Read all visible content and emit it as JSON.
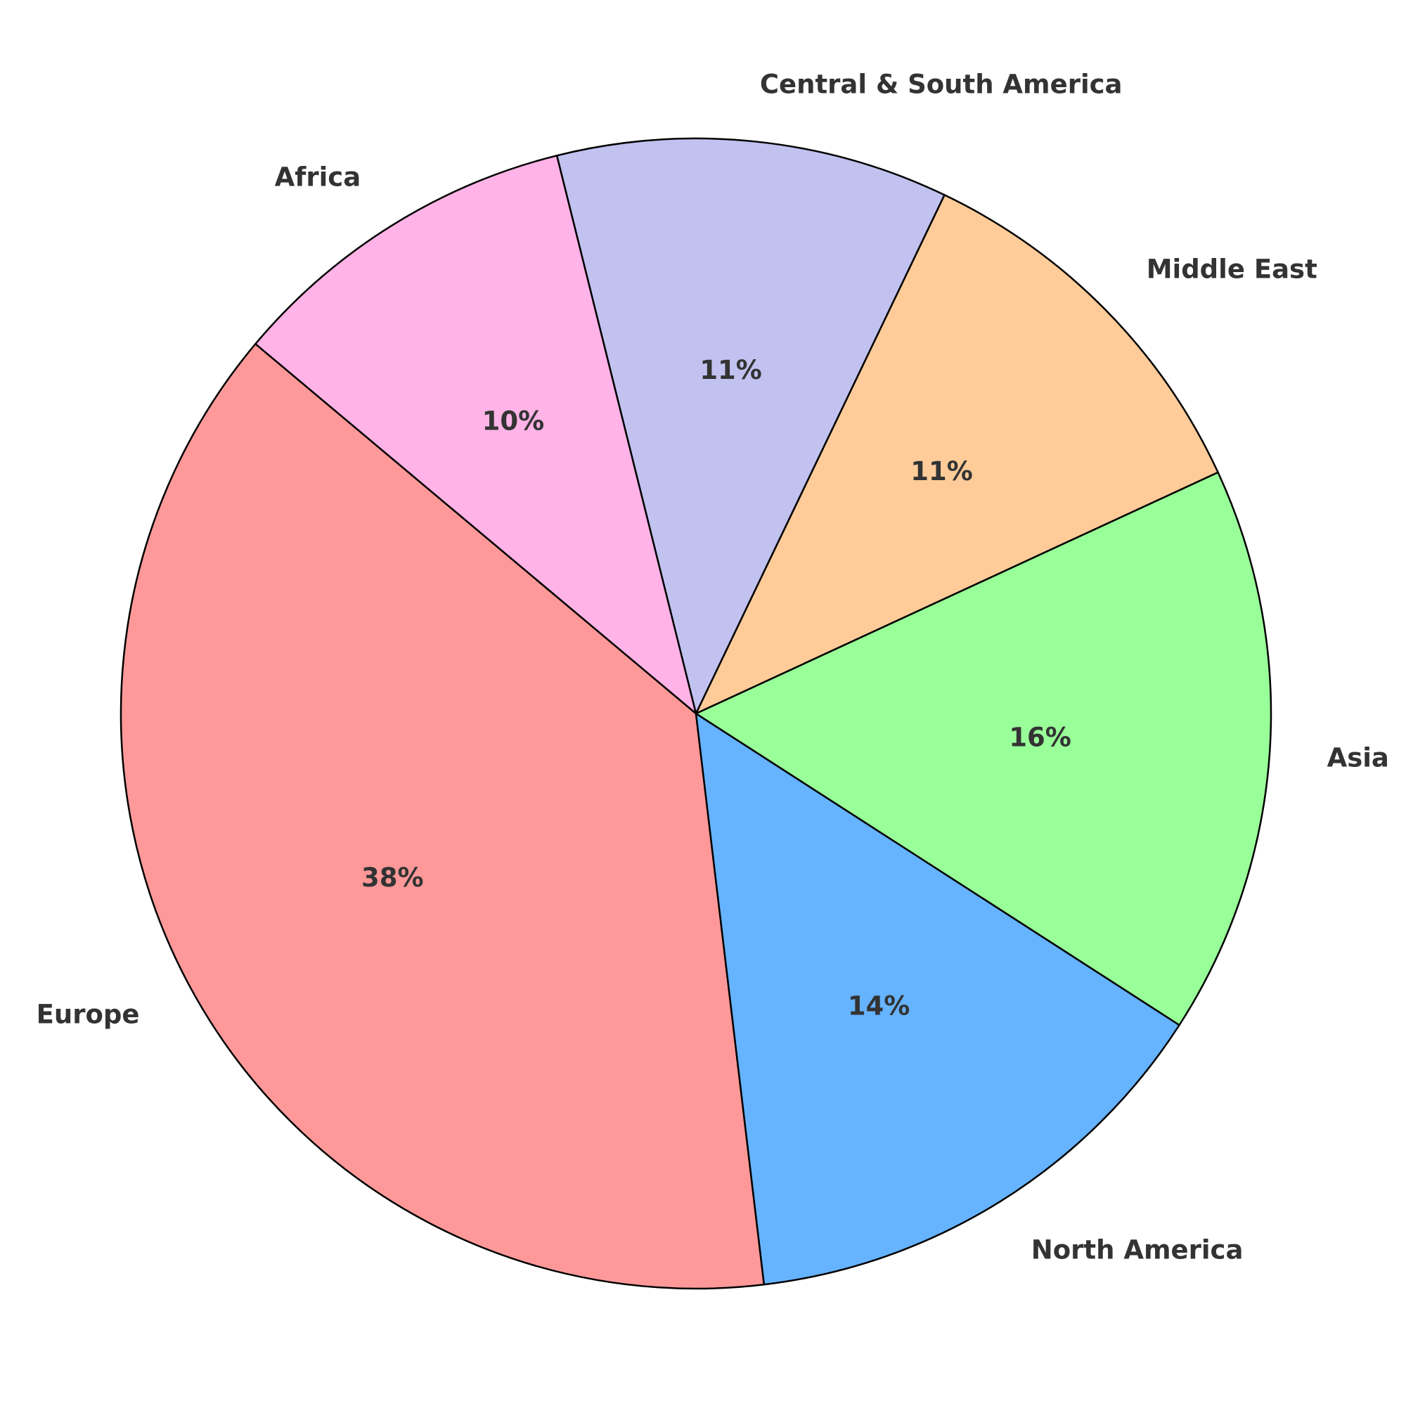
{
  "chart_data": {
    "type": "pie",
    "title": "",
    "categories": [
      "Europe",
      "North America",
      "Asia",
      "Middle East",
      "Central & South America",
      "Africa"
    ],
    "values": [
      38,
      14,
      16,
      11,
      11,
      10
    ],
    "percent_labels": [
      "38%",
      "14%",
      "16%",
      "11%",
      "11%",
      "10%"
    ],
    "colors": [
      "#ff9999",
      "#66b3ff",
      "#99ff99",
      "#ffcc99",
      "#c2c2f0",
      "#ffb3e6"
    ],
    "edge_color": "#000000",
    "start_angle_deg": 140,
    "direction": "counterclockwise",
    "legend": "none"
  }
}
